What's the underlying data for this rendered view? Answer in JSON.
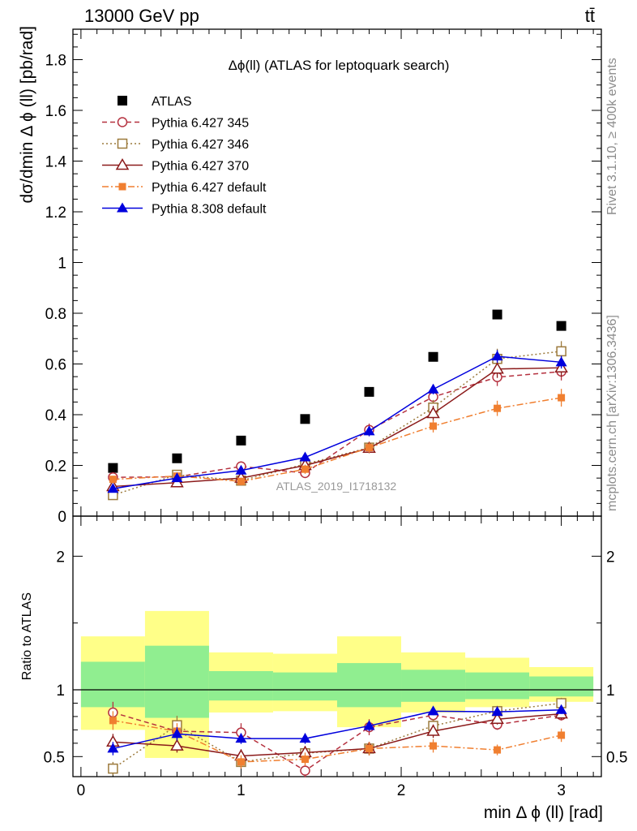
{
  "header": {
    "left": "13000 GeV pp",
    "right": "tt̄"
  },
  "side_labels": {
    "rivet": "Rivet 3.1.10, ≥ 400k events",
    "mcplots": "mcplots.cern.ch [arXiv:1306.3436]"
  },
  "chart_data": [
    {
      "type": "scatter",
      "panel": "main",
      "title": "Δϕ(ll) (ATLAS for leptoquark search)",
      "watermark": "ATLAS_2019_I1718132",
      "ylabel": "dσ/dmin Δ ϕ (ll) [pb/rad]",
      "xlabel": "",
      "xlim": [
        -0.05,
        3.25
      ],
      "ylim": [
        0,
        1.92
      ],
      "yticks": [
        0,
        0.2,
        0.4,
        0.6,
        0.8,
        1,
        1.2,
        1.4,
        1.6,
        1.8
      ],
      "ytick_labels": [
        "0",
        "0.2",
        "0.4",
        "0.6",
        "0.8",
        "1",
        "1.2",
        "1.4",
        "1.6",
        "1.8"
      ],
      "grid": false,
      "legend_position": "top-left",
      "x": [
        0.2,
        0.6,
        1.0,
        1.4,
        1.8,
        2.2,
        2.6,
        3.0
      ],
      "series": [
        {
          "name": "ATLAS",
          "color": "#000000",
          "marker": "square-filled",
          "line": "none",
          "values": [
            0.19,
            0.228,
            0.298,
            0.383,
            0.49,
            0.628,
            0.795,
            0.75
          ],
          "errors": [
            0,
            0,
            0,
            0,
            0,
            0,
            0,
            0
          ]
        },
        {
          "name": "Pythia 6.427 345",
          "color": "#b5313f",
          "marker": "circle-open",
          "line": "dashed",
          "values": [
            0.153,
            0.155,
            0.196,
            0.17,
            0.34,
            0.47,
            0.548,
            0.57
          ],
          "errors": [
            0.015,
            0.015,
            0.02,
            0.02,
            0.025,
            0.03,
            0.035,
            0.035
          ]
        },
        {
          "name": "Pythia 6.427 346",
          "color": "#9c7a3c",
          "marker": "square-open",
          "line": "dotted",
          "values": [
            0.083,
            0.163,
            0.14,
            0.205,
            0.27,
            0.428,
            0.62,
            0.65
          ],
          "errors": [
            0.01,
            0.015,
            0.015,
            0.02,
            0.02,
            0.03,
            0.04,
            0.04
          ]
        },
        {
          "name": "Pythia 6.427 370",
          "color": "#8b1a1a",
          "marker": "triangle-open",
          "line": "solid",
          "values": [
            0.117,
            0.132,
            0.15,
            0.2,
            0.268,
            0.405,
            0.58,
            0.585
          ],
          "errors": [
            0.012,
            0.012,
            0.015,
            0.018,
            0.02,
            0.03,
            0.035,
            0.035
          ]
        },
        {
          "name": "Pythia 6.427 default",
          "color": "#f07f30",
          "marker": "square-filled-small",
          "line": "dashdot",
          "values": [
            0.145,
            0.158,
            0.137,
            0.185,
            0.27,
            0.355,
            0.425,
            0.467
          ],
          "errors": [
            0.012,
            0.015,
            0.015,
            0.018,
            0.02,
            0.025,
            0.03,
            0.035
          ]
        },
        {
          "name": "Pythia 8.308 default",
          "color": "#0000dd",
          "marker": "triangle-filled",
          "line": "solid",
          "values": [
            0.108,
            0.15,
            0.18,
            0.232,
            0.335,
            0.5,
            0.63,
            0.607
          ],
          "errors": [
            0.01,
            0.012,
            0.015,
            0.015,
            0.02,
            0.02,
            0.025,
            0.025
          ]
        }
      ]
    },
    {
      "type": "scatter",
      "panel": "ratio",
      "ylabel": "Ratio to ATLAS",
      "xlabel": "min Δ ϕ (ll) [rad]",
      "xlim": [
        -0.05,
        3.25
      ],
      "ylim": [
        0.35,
        2.3
      ],
      "yticks": [
        0.5,
        1,
        2
      ],
      "ytick_labels": [
        "0.5",
        "1",
        "2"
      ],
      "xticks": [
        0,
        1,
        2,
        3
      ],
      "xtick_labels": [
        "0",
        "1",
        "2",
        "3"
      ],
      "reference_line": 1,
      "bands": {
        "bin_edges": [
          0,
          0.4,
          0.8,
          1.2,
          1.6,
          2.0,
          2.4,
          2.8,
          3.2
        ],
        "stat_color": "#90ee90",
        "total_color": "#ffff88",
        "stat": [
          [
            0.87,
            1.21
          ],
          [
            0.79,
            1.33
          ],
          [
            0.92,
            1.14
          ],
          [
            0.92,
            1.13
          ],
          [
            0.87,
            1.2
          ],
          [
            0.91,
            1.15
          ],
          [
            0.93,
            1.13
          ],
          [
            0.95,
            1.1
          ]
        ],
        "total": [
          [
            0.7,
            1.4
          ],
          [
            0.49,
            1.59
          ],
          [
            0.83,
            1.28
          ],
          [
            0.84,
            1.27
          ],
          [
            0.72,
            1.4
          ],
          [
            0.83,
            1.28
          ],
          [
            0.87,
            1.24
          ],
          [
            0.91,
            1.17
          ]
        ]
      },
      "x": [
        0.2,
        0.6,
        1.0,
        1.4,
        1.8,
        2.2,
        2.6,
        3.0
      ],
      "series": [
        {
          "name": "Pythia 6.427 345",
          "color": "#b5313f",
          "marker": "circle-open",
          "line": "dashed",
          "values": [
            0.83,
            0.69,
            0.68,
            0.395,
            0.72,
            0.81,
            0.74,
            0.81
          ],
          "errors": [
            0.08,
            0.06,
            0.07,
            0.05,
            0.06,
            0.05,
            0.04,
            0.04
          ]
        },
        {
          "name": "Pythia 6.427 346",
          "color": "#9c7a3c",
          "marker": "square-open",
          "line": "dotted",
          "values": [
            0.41,
            0.735,
            0.46,
            0.525,
            0.56,
            0.73,
            0.84,
            0.9
          ],
          "errors": [
            0.05,
            0.07,
            0.05,
            0.05,
            0.05,
            0.05,
            0.04,
            0.04
          ]
        },
        {
          "name": "Pythia 6.427 370",
          "color": "#8b1a1a",
          "marker": "triangle-open",
          "line": "solid",
          "values": [
            0.61,
            0.58,
            0.505,
            0.53,
            0.56,
            0.69,
            0.78,
            0.82
          ],
          "errors": [
            0.06,
            0.05,
            0.05,
            0.05,
            0.05,
            0.05,
            0.04,
            0.04
          ]
        },
        {
          "name": "Pythia 6.427 default",
          "color": "#f07f30",
          "marker": "square-filled-small",
          "line": "dashdot",
          "values": [
            0.77,
            0.69,
            0.46,
            0.48,
            0.56,
            0.58,
            0.55,
            0.66
          ],
          "errors": [
            0.07,
            0.06,
            0.05,
            0.05,
            0.05,
            0.05,
            0.04,
            0.05
          ]
        },
        {
          "name": "Pythia 8.308 default",
          "color": "#0000dd",
          "marker": "triangle-filled",
          "line": "solid",
          "values": [
            0.56,
            0.67,
            0.635,
            0.635,
            0.73,
            0.84,
            0.835,
            0.85
          ],
          "errors": [
            0.05,
            0.05,
            0.04,
            0.04,
            0.04,
            0.03,
            0.03,
            0.03
          ]
        }
      ]
    }
  ]
}
